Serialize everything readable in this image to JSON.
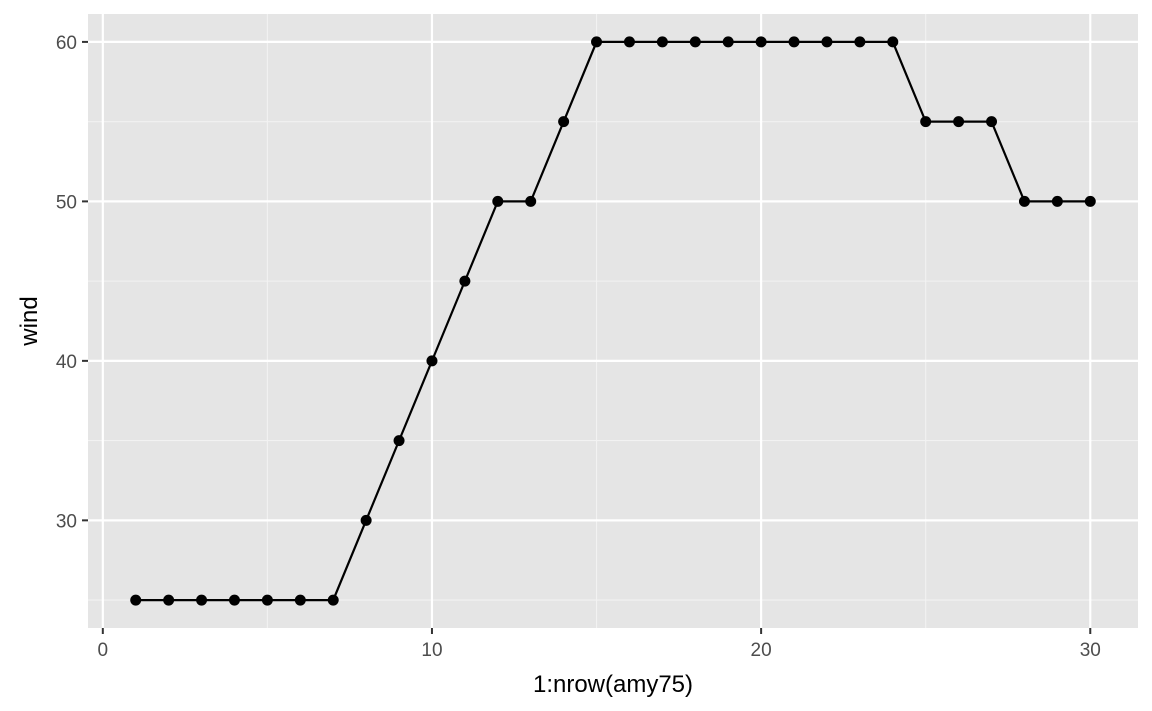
{
  "chart_data": {
    "type": "line",
    "title": "",
    "xlabel": "1:nrow(amy75)",
    "ylabel": "wind",
    "x": [
      1,
      2,
      3,
      4,
      5,
      6,
      7,
      8,
      9,
      10,
      11,
      12,
      13,
      14,
      15,
      16,
      17,
      18,
      19,
      20,
      21,
      22,
      23,
      24,
      25,
      26,
      27,
      28,
      29,
      30
    ],
    "series": [
      {
        "values": [
          25,
          25,
          25,
          25,
          25,
          25,
          25,
          30,
          35,
          40,
          45,
          50,
          50,
          55,
          60,
          60,
          60,
          60,
          60,
          60,
          60,
          60,
          60,
          60,
          55,
          55,
          55,
          50,
          50,
          50
        ],
        "color": "#000000",
        "markers": true
      }
    ],
    "xlim": [
      -0.45,
      31.45
    ],
    "ylim": [
      23.25,
      61.75
    ],
    "x_ticks": [
      0,
      10,
      20,
      30
    ],
    "x_tick_labels": [
      "0",
      "10",
      "20",
      "30"
    ],
    "y_ticks": [
      30,
      40,
      50,
      60
    ],
    "y_tick_labels": [
      "30",
      "40",
      "50",
      "60"
    ],
    "grid": true,
    "legend": "none",
    "panel_color": "#e5e5e5",
    "grid_color": "#ffffff"
  }
}
